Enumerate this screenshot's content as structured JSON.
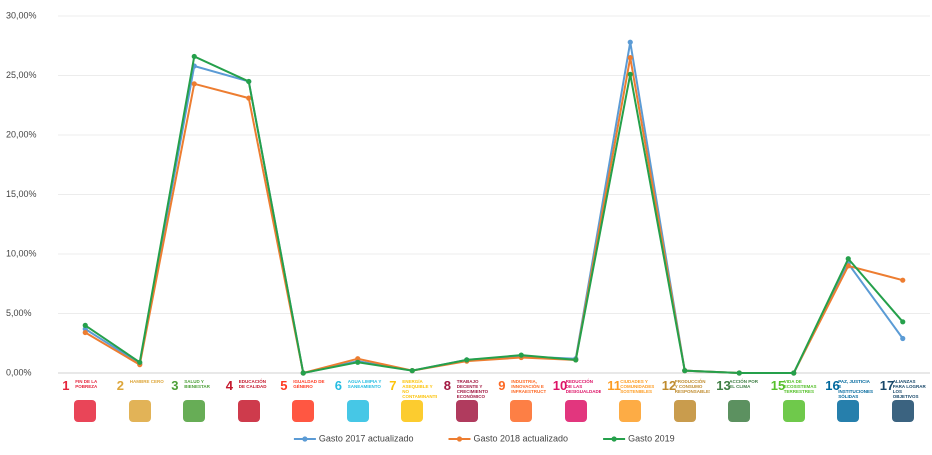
{
  "chart_data": {
    "type": "line",
    "categories": [
      "FIN DE LA POBREZA",
      "HAMBRE CERO",
      "SALUD Y BIENESTAR",
      "EDUCACIÓN DE CALIDAD",
      "IGUALDAD DE GÉNERO",
      "AGUA LIMPIA Y SANEAMIENTO",
      "ENERGÍA ASEQUIBLE Y NO CONTAMINANTE",
      "TRABAJO DECENTE Y CRECIMIENTO ECONÓMICO",
      "INDUSTRIA, INNOVACIÓN E INFRAESTRUCTURA",
      "REDUCCIÓN DE LAS DESIGUALDADES",
      "CIUDADES Y COMUNIDADES SOSTENIBLES",
      "PRODUCCIÓN Y CONSUMO RESPONSABLES",
      "ACCIÓN POR EL CLIMA",
      "VIDA DE ECOSISTEMAS TERRESTRES",
      "PAZ, JUSTICIA E INSTITUCIONES SÓLIDAS",
      "ALIANZAS PARA LOGRAR LOS OBJETIVOS"
    ],
    "category_numbers": [
      "1",
      "2",
      "3",
      "4",
      "5",
      "6",
      "7",
      "8",
      "9",
      "10",
      "11",
      "12",
      "13",
      "15",
      "16",
      "17"
    ],
    "category_colors": [
      "#e5243b",
      "#dda63a",
      "#4c9f38",
      "#c5192d",
      "#ff3a21",
      "#26bde2",
      "#fcc30b",
      "#a21942",
      "#fd6925",
      "#dd1367",
      "#fd9d24",
      "#bf8b2e",
      "#3f7e44",
      "#56c02b",
      "#00689d",
      "#19486a"
    ],
    "series": [
      {
        "name": "Gasto 2017 actualizado",
        "color": "#5b9bd5",
        "values": [
          3.7,
          0.8,
          25.8,
          24.5,
          0,
          1.0,
          0.2,
          1.1,
          1.4,
          1.2,
          27.8,
          0.2,
          0,
          0,
          9.2,
          2.9
        ]
      },
      {
        "name": "Gasto 2018 actualizado",
        "color": "#ed7d31",
        "values": [
          3.4,
          0.7,
          24.3,
          23.1,
          0,
          1.2,
          0.2,
          1.0,
          1.3,
          1.1,
          26.5,
          0.2,
          0,
          0,
          9.0,
          7.8
        ]
      },
      {
        "name": "Gasto 2019",
        "color": "#25a04b",
        "values": [
          4.0,
          0.9,
          26.6,
          24.5,
          0,
          0.9,
          0.2,
          1.1,
          1.5,
          1.1,
          25.1,
          0.2,
          0,
          0,
          9.6,
          4.3
        ]
      }
    ],
    "ylim": [
      0,
      30
    ],
    "yticks": [
      {
        "value": 0,
        "label": "0,00%"
      },
      {
        "value": 5,
        "label": "5,00%"
      },
      {
        "value": 10,
        "label": "10,00%"
      },
      {
        "value": 15,
        "label": "15,00%"
      },
      {
        "value": 20,
        "label": "20,00%"
      },
      {
        "value": 25,
        "label": "25,00%"
      },
      {
        "value": 30,
        "label": "30,00%"
      }
    ],
    "grid": true,
    "legend": "bottom"
  }
}
